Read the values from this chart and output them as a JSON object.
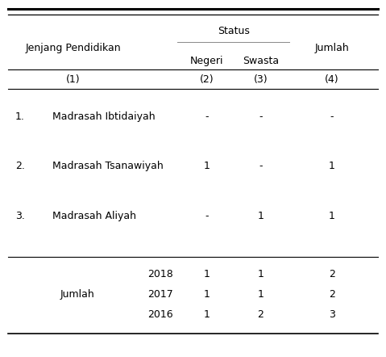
{
  "rows": [
    [
      "1.",
      "Madrasah Ibtidaiyah",
      "-",
      "-",
      "-"
    ],
    [
      "2.",
      "Madrasah Tsanawiyah",
      "1",
      "-",
      "1"
    ],
    [
      "3.",
      "Madrasah Aliyah",
      "-",
      "1",
      "1"
    ]
  ],
  "footer_years": [
    "2018",
    "2017",
    "2016"
  ],
  "footer_negeri": [
    "1",
    "1",
    "1"
  ],
  "footer_swasta": [
    "1",
    "1",
    "2"
  ],
  "footer_jumlah": [
    "2",
    "2",
    "3"
  ],
  "bg_color": "#ffffff",
  "text_color": "#000000",
  "fontsize": 9
}
